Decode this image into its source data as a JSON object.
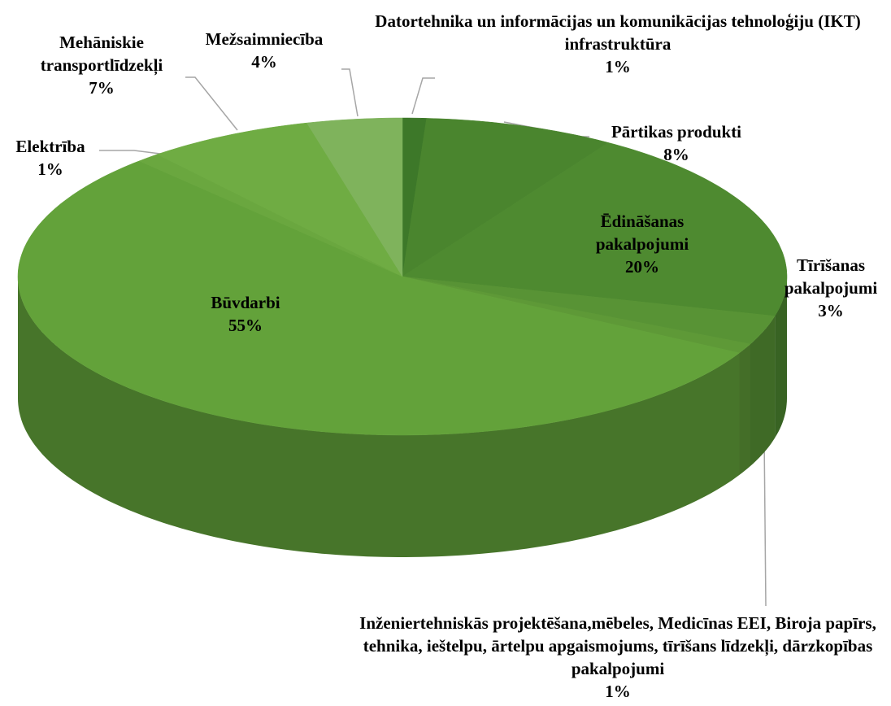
{
  "chart_data": {
    "type": "pie",
    "categories": [
      "Datortehnika un informācijas un komunikācijas tehnoloģiju (IKT) infrastruktūra",
      "Pārtikas produkti",
      "Ēdināšanas pakalpojumi",
      "Tīrīšanas pakalpojumi",
      "Inženiertehniskās projektēšana,mēbeles, Medicīnas EEI, Biroja papīrs, tehnika, ieštelpu, ārtelpu apgaismojums, tīrīšans līdzekļi, dārzkopības pakalpojumi",
      "Būvdarbi",
      "Elektrība",
      "Mehāniskie transportlīdzekļi",
      "Mežsaimniecība"
    ],
    "values": [
      1,
      8,
      20,
      3,
      1,
      55,
      1,
      7,
      4
    ],
    "value_labels": [
      "1%",
      "8%",
      "20%",
      "3%",
      "1%",
      "55%",
      "1%",
      "7%",
      "4%"
    ],
    "colors": [
      "#3d7829",
      "#4a852e",
      "#4e8a30",
      "#589335",
      "#5e9937",
      "#63a23a",
      "#6aa73f",
      "#6fac43",
      "#7fb35c"
    ]
  }
}
